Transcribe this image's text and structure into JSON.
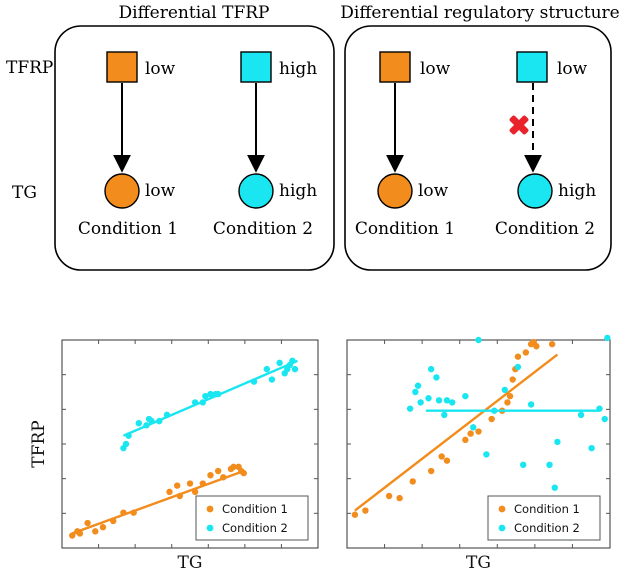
{
  "top": {
    "left_panel_title": "Differential TFRP",
    "right_panel_title": "Differential regulatory structure",
    "row_label_tfrp": "TFRP",
    "row_label_tg": "TG",
    "left": {
      "cond1": {
        "tfrp_level": "low",
        "tg_level": "low",
        "label": "Condition 1"
      },
      "cond2": {
        "tfrp_level": "high",
        "tg_level": "high",
        "label": "Condition 2"
      }
    },
    "right": {
      "cond1": {
        "tfrp_level": "low",
        "tg_level": "low",
        "label": "Condition 1"
      },
      "cond2": {
        "tfrp_level": "low",
        "tg_level": "high",
        "label": "Condition 2"
      }
    }
  },
  "colors": {
    "condition1": "#F28C1C",
    "condition2": "#19E6F0",
    "cross": "#E8232B"
  },
  "chart_data": [
    {
      "type": "scatter",
      "xlabel": "TG",
      "ylabel": "TFRP",
      "legend": [
        "Condition 1",
        "Condition 2"
      ],
      "legend_position": "bottom-right",
      "series": [
        {
          "name": "Condition 1",
          "points": [
            [
              0.04,
              0.06
            ],
            [
              0.06,
              0.08
            ],
            [
              0.07,
              0.07
            ],
            [
              0.1,
              0.12
            ],
            [
              0.13,
              0.08
            ],
            [
              0.16,
              0.1
            ],
            [
              0.2,
              0.13
            ],
            [
              0.24,
              0.17
            ],
            [
              0.28,
              0.17
            ],
            [
              0.42,
              0.27
            ],
            [
              0.45,
              0.3
            ],
            [
              0.46,
              0.25
            ],
            [
              0.5,
              0.31
            ],
            [
              0.52,
              0.27
            ],
            [
              0.55,
              0.31
            ],
            [
              0.58,
              0.35
            ],
            [
              0.61,
              0.37
            ],
            [
              0.63,
              0.34
            ],
            [
              0.66,
              0.38
            ],
            [
              0.67,
              0.39
            ],
            [
              0.69,
              0.39
            ],
            [
              0.7,
              0.37
            ],
            [
              0.71,
              0.36
            ]
          ],
          "fit": [
            [
              0.04,
              0.07
            ],
            [
              0.71,
              0.37
            ]
          ]
        },
        {
          "name": "Condition 2",
          "points": [
            [
              0.24,
              0.48
            ],
            [
              0.25,
              0.5
            ],
            [
              0.26,
              0.54
            ],
            [
              0.3,
              0.6
            ],
            [
              0.33,
              0.59
            ],
            [
              0.34,
              0.62
            ],
            [
              0.35,
              0.61
            ],
            [
              0.38,
              0.61
            ],
            [
              0.41,
              0.64
            ],
            [
              0.52,
              0.7
            ],
            [
              0.55,
              0.7
            ],
            [
              0.56,
              0.73
            ],
            [
              0.58,
              0.74
            ],
            [
              0.6,
              0.74
            ],
            [
              0.61,
              0.74
            ],
            [
              0.75,
              0.8
            ],
            [
              0.8,
              0.86
            ],
            [
              0.82,
              0.81
            ],
            [
              0.85,
              0.89
            ],
            [
              0.87,
              0.84
            ],
            [
              0.88,
              0.86
            ],
            [
              0.89,
              0.88
            ],
            [
              0.9,
              0.9
            ],
            [
              0.91,
              0.86
            ]
          ],
          "fit": [
            [
              0.24,
              0.54
            ],
            [
              0.92,
              0.9
            ]
          ]
        }
      ]
    },
    {
      "type": "scatter",
      "xlabel": "TG",
      "ylabel": "",
      "legend": [
        "Condition 1",
        "Condition 2"
      ],
      "legend_position": "bottom-right",
      "series": [
        {
          "name": "Condition 1",
          "points": [
            [
              0.03,
              0.16
            ],
            [
              0.07,
              0.18
            ],
            [
              0.16,
              0.25
            ],
            [
              0.2,
              0.24
            ],
            [
              0.25,
              0.32
            ],
            [
              0.32,
              0.37
            ],
            [
              0.36,
              0.44
            ],
            [
              0.38,
              0.42
            ],
            [
              0.45,
              0.52
            ],
            [
              0.47,
              0.55
            ],
            [
              0.5,
              0.56
            ],
            [
              0.55,
              0.62
            ],
            [
              0.59,
              0.66
            ],
            [
              0.61,
              0.7
            ],
            [
              0.62,
              0.73
            ],
            [
              0.63,
              0.81
            ],
            [
              0.64,
              0.86
            ],
            [
              0.65,
              0.92
            ],
            [
              0.68,
              0.94
            ],
            [
              0.7,
              0.98
            ],
            [
              0.71,
              0.99
            ],
            [
              0.72,
              0.97
            ],
            [
              0.78,
              0.98
            ]
          ],
          "fit": [
            [
              0.03,
              0.18
            ],
            [
              0.8,
              0.93
            ]
          ]
        },
        {
          "name": "Condition 2",
          "points": [
            [
              0.24,
              0.67
            ],
            [
              0.26,
              0.75
            ],
            [
              0.27,
              0.78
            ],
            [
              0.28,
              0.7
            ],
            [
              0.31,
              0.72
            ],
            [
              0.32,
              0.86
            ],
            [
              0.34,
              0.82
            ],
            [
              0.35,
              0.71
            ],
            [
              0.37,
              0.64
            ],
            [
              0.38,
              0.71
            ],
            [
              0.4,
              0.7
            ],
            [
              0.45,
              0.73
            ],
            [
              0.48,
              0.58
            ],
            [
              0.5,
              1.0
            ],
            [
              0.53,
              0.45
            ],
            [
              0.56,
              0.66
            ],
            [
              0.6,
              0.76
            ],
            [
              0.65,
              0.87
            ],
            [
              0.67,
              0.4
            ],
            [
              0.7,
              0.69
            ],
            [
              0.77,
              0.4
            ],
            [
              0.79,
              0.29
            ],
            [
              0.8,
              0.51
            ],
            [
              0.85,
              0.05
            ],
            [
              0.89,
              0.64
            ],
            [
              0.93,
              0.48
            ],
            [
              0.96,
              0.67
            ],
            [
              0.98,
              0.62
            ],
            [
              0.99,
              1.01
            ]
          ],
          "fit": [
            [
              0.3,
              0.66
            ],
            [
              0.96,
              0.66
            ]
          ]
        }
      ]
    }
  ]
}
